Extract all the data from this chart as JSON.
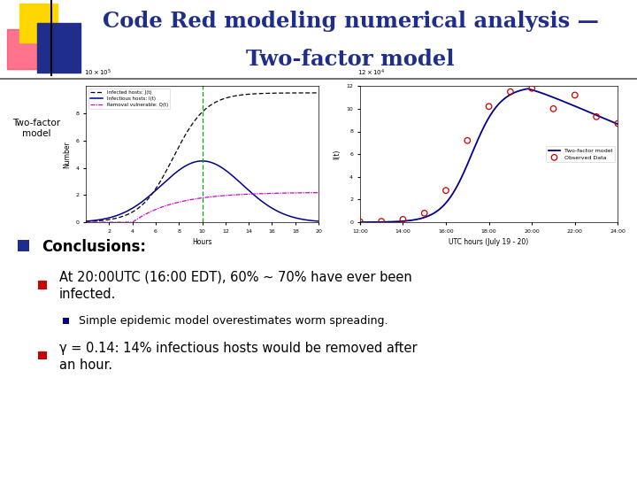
{
  "title_line1": "Code Red modeling numerical analysis —",
  "title_line2": "Two-factor model",
  "title_color": "#1F2E8A",
  "title_fontsize": 17.5,
  "bg_color": "#FFFFFF",
  "left_label": "Two-factor\nmodel",
  "conclusions_header": "Conclusions:",
  "bullet1a": "At 20:00UTC (16:00 EDT), 60% ~ 70% have ever been",
  "bullet1b": "infected.",
  "sub_bullet1": "Simple epidemic model overestimates worm spreading.",
  "bullet2a": "γ = 0.14: 14% infectious hosts would be removed after",
  "bullet2b": "an hour.",
  "bullet_color": "#CC0000",
  "sub_bullet_color": "#000080",
  "text_color": "#000000",
  "header_color": "#000000",
  "accent_yellow": "#FFD700",
  "accent_blue": "#1F2E8A",
  "accent_red_pink": "#FF4466",
  "conclusions_bullet_color": "#1F2E8A",
  "obs_x": [
    12,
    13,
    14,
    15,
    16,
    17,
    18,
    19,
    20,
    21,
    22,
    23,
    24
  ],
  "obs_y": [
    0.05,
    0.08,
    0.25,
    0.8,
    2.8,
    7.2,
    10.2,
    11.5,
    11.8,
    10.0,
    11.2,
    9.3,
    8.7
  ]
}
